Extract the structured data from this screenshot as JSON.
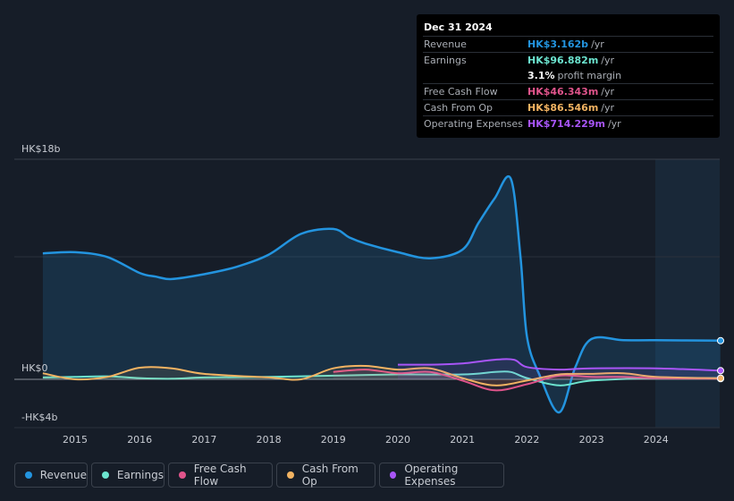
{
  "tooltip": {
    "date": "Dec 31 2024",
    "rows": [
      {
        "label": "Revenue",
        "value": "HK$3.162b",
        "unit": "/yr",
        "color": "#2394df"
      },
      {
        "label": "Earnings",
        "value": "HK$96.882m",
        "unit": "/yr",
        "color": "#6ce4cf"
      },
      {
        "label": "",
        "value": "3.1%",
        "unit": "profit margin",
        "color": "#ffffff"
      },
      {
        "label": "Free Cash Flow",
        "value": "HK$46.343m",
        "unit": "/yr",
        "color": "#e0548b"
      },
      {
        "label": "Cash From Op",
        "value": "HK$86.546m",
        "unit": "/yr",
        "color": "#f2b362"
      },
      {
        "label": "Operating Expenses",
        "value": "HK$714.229m",
        "unit": "/yr",
        "color": "#a855f7"
      }
    ]
  },
  "legend": [
    {
      "label": "Revenue",
      "color": "#2394df"
    },
    {
      "label": "Earnings",
      "color": "#6ce4cf"
    },
    {
      "label": "Free Cash Flow",
      "color": "#e0548b"
    },
    {
      "label": "Cash From Op",
      "color": "#f2b362"
    },
    {
      "label": "Operating Expenses",
      "color": "#a855f7"
    }
  ],
  "chart_data": {
    "type": "line",
    "currency": "HK$",
    "unit": "billions",
    "ylim": [
      -4,
      18
    ],
    "y_tick_labels": [
      "HK$18b",
      "HK$0",
      "-HK$4b"
    ],
    "x_tick_labels": [
      "2015",
      "2016",
      "2017",
      "2018",
      "2019",
      "2020",
      "2021",
      "2022",
      "2023",
      "2024"
    ],
    "x_range": [
      2014.5,
      2025.0
    ],
    "forecast_start": 2024.0,
    "series": [
      {
        "name": "Revenue",
        "color": "#2394df",
        "area": true,
        "points": [
          [
            2014.5,
            10.3
          ],
          [
            2015.0,
            10.4
          ],
          [
            2015.5,
            10.0
          ],
          [
            2016.0,
            8.7
          ],
          [
            2016.25,
            8.4
          ],
          [
            2016.5,
            8.2
          ],
          [
            2017.0,
            8.6
          ],
          [
            2017.5,
            9.2
          ],
          [
            2018.0,
            10.2
          ],
          [
            2018.5,
            11.9
          ],
          [
            2019.0,
            12.3
          ],
          [
            2019.25,
            11.6
          ],
          [
            2019.5,
            11.1
          ],
          [
            2020.0,
            10.4
          ],
          [
            2020.5,
            9.9
          ],
          [
            2021.0,
            10.6
          ],
          [
            2021.25,
            12.8
          ],
          [
            2021.5,
            14.8
          ],
          [
            2021.75,
            16.4
          ],
          [
            2021.9,
            10.0
          ],
          [
            2022.0,
            3.5
          ],
          [
            2022.2,
            0.3
          ],
          [
            2022.5,
            -2.7
          ],
          [
            2022.75,
            1.0
          ],
          [
            2023.0,
            3.3
          ],
          [
            2023.5,
            3.2
          ],
          [
            2024.0,
            3.2
          ],
          [
            2025.0,
            3.16
          ]
        ]
      },
      {
        "name": "Earnings",
        "color": "#6ce4cf",
        "points": [
          [
            2014.5,
            0.15
          ],
          [
            2015.0,
            0.2
          ],
          [
            2015.5,
            0.25
          ],
          [
            2016.0,
            0.1
          ],
          [
            2016.5,
            0.05
          ],
          [
            2017.0,
            0.15
          ],
          [
            2018.0,
            0.2
          ],
          [
            2019.0,
            0.3
          ],
          [
            2020.0,
            0.4
          ],
          [
            2021.0,
            0.4
          ],
          [
            2021.5,
            0.6
          ],
          [
            2021.75,
            0.6
          ],
          [
            2022.0,
            0.1
          ],
          [
            2022.5,
            -0.5
          ],
          [
            2023.0,
            -0.1
          ],
          [
            2024.0,
            0.1
          ],
          [
            2025.0,
            0.1
          ]
        ]
      },
      {
        "name": "Free Cash Flow",
        "color": "#e0548b",
        "points": [
          [
            2019.0,
            0.6
          ],
          [
            2019.5,
            0.8
          ],
          [
            2020.0,
            0.5
          ],
          [
            2020.5,
            0.6
          ],
          [
            2021.0,
            -0.1
          ],
          [
            2021.5,
            -0.9
          ],
          [
            2022.0,
            -0.4
          ],
          [
            2022.5,
            0.3
          ],
          [
            2023.0,
            0.2
          ],
          [
            2023.5,
            0.2
          ],
          [
            2024.0,
            0.1
          ],
          [
            2025.0,
            0.05
          ]
        ]
      },
      {
        "name": "Cash From Op",
        "color": "#f2b362",
        "points": [
          [
            2014.5,
            0.5
          ],
          [
            2015.0,
            0.0
          ],
          [
            2015.5,
            0.2
          ],
          [
            2016.0,
            0.95
          ],
          [
            2016.5,
            0.9
          ],
          [
            2017.0,
            0.45
          ],
          [
            2018.0,
            0.15
          ],
          [
            2018.5,
            0.0
          ],
          [
            2019.0,
            0.9
          ],
          [
            2019.5,
            1.1
          ],
          [
            2020.0,
            0.8
          ],
          [
            2020.5,
            0.9
          ],
          [
            2021.0,
            0.1
          ],
          [
            2021.5,
            -0.5
          ],
          [
            2022.0,
            -0.1
          ],
          [
            2022.5,
            0.4
          ],
          [
            2023.0,
            0.45
          ],
          [
            2023.5,
            0.5
          ],
          [
            2024.0,
            0.2
          ],
          [
            2025.0,
            0.09
          ]
        ]
      },
      {
        "name": "Operating Expenses",
        "color": "#a855f7",
        "points": [
          [
            2020.0,
            1.2
          ],
          [
            2020.5,
            1.2
          ],
          [
            2021.0,
            1.3
          ],
          [
            2021.5,
            1.6
          ],
          [
            2021.8,
            1.6
          ],
          [
            2022.0,
            1.0
          ],
          [
            2022.5,
            0.8
          ],
          [
            2023.0,
            0.9
          ],
          [
            2024.0,
            0.9
          ],
          [
            2025.0,
            0.71
          ]
        ]
      }
    ]
  }
}
